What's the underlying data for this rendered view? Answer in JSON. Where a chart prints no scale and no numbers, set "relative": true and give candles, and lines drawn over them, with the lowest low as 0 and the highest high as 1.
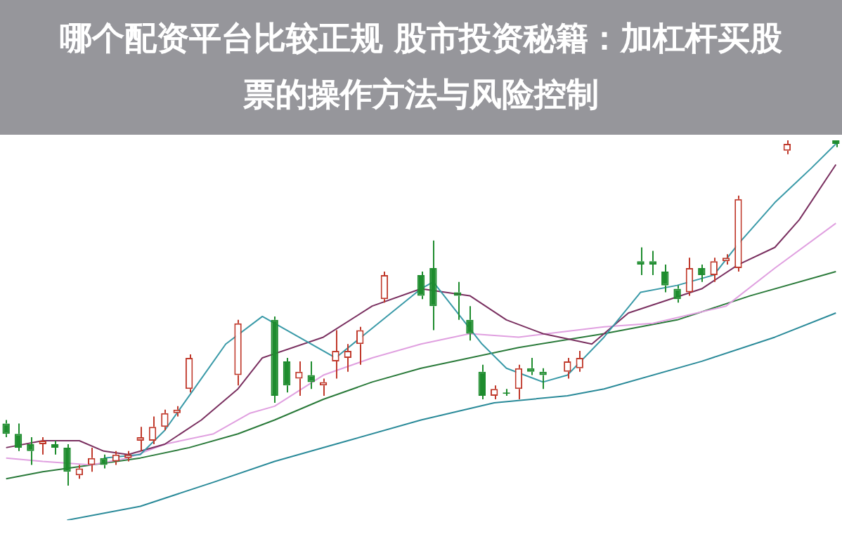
{
  "chart_data": {
    "type": "candlestick",
    "title": "哪个配资平台比较正规 股市投资秘籍：加杠杆买股票的操作方法与风险控制",
    "relative": true,
    "legend": false,
    "categories": [
      null,
      null,
      null,
      null,
      null,
      null,
      null,
      null,
      null,
      null,
      null,
      null,
      null,
      null,
      null,
      null,
      null,
      null,
      null,
      null,
      null,
      null,
      null,
      null,
      null,
      null,
      null,
      null,
      null,
      null,
      null,
      null,
      null,
      null,
      null,
      null,
      null,
      null,
      null,
      null,
      null,
      null,
      null,
      null,
      null,
      null,
      null,
      null,
      null,
      null,
      null,
      null,
      null,
      null,
      null,
      null,
      null,
      null,
      null,
      null,
      null,
      null,
      null,
      null,
      null,
      null,
      null,
      null,
      null
    ],
    "ohlc": [
      [
        0.18,
        0.19,
        0.14,
        0.15
      ],
      [
        0.15,
        0.18,
        0.1,
        0.11
      ],
      [
        0.12,
        0.14,
        0.06,
        0.1
      ],
      [
        0.12,
        0.14,
        0.09,
        0.13
      ],
      [
        0.12,
        0.13,
        0.09,
        0.11
      ],
      [
        0.11,
        0.12,
        0,
        0.04
      ],
      [
        0.03,
        0.06,
        0.02,
        0.05
      ],
      [
        0.06,
        0.11,
        0.04,
        0.08
      ],
      [
        0.08,
        0.09,
        0.05,
        0.06
      ],
      [
        0.07,
        0.1,
        0.06,
        0.09
      ],
      [
        0.08,
        0.1,
        0.07,
        0.09
      ],
      [
        0.13,
        0.17,
        0.1,
        0.14
      ],
      [
        0.13,
        0.2,
        0.12,
        0.17
      ],
      [
        0.17,
        0.22,
        0.16,
        0.21
      ],
      [
        0.21,
        0.23,
        0.2,
        0.22
      ],
      [
        0.28,
        0.38,
        0.27,
        0.37
      ],
      null,
      null,
      null,
      [
        0.32,
        0.48,
        0.29,
        0.47
      ],
      null,
      null,
      [
        0.48,
        0.49,
        0.24,
        0.26
      ],
      [
        0.36,
        0.37,
        0.27,
        0.29
      ],
      [
        0.31,
        0.36,
        0.26,
        0.33
      ],
      [
        0.32,
        0.36,
        0.28,
        0.3
      ],
      [
        0.29,
        0.31,
        0.26,
        0.3
      ],
      [
        0.36,
        0.45,
        0.31,
        0.39
      ],
      [
        0.37,
        0.41,
        0.33,
        0.39
      ],
      [
        0.41,
        0.46,
        0.35,
        0.45
      ],
      null,
      [
        0.54,
        0.62,
        0.53,
        0.61
      ],
      null,
      null,
      [
        0.61,
        0.62,
        0.54,
        0.55
      ],
      [
        0.63,
        0.71,
        0.45,
        0.52
      ],
      null,
      [
        0.56,
        0.59,
        0.48,
        0.55
      ],
      [
        0.48,
        0.52,
        0.42,
        0.44
      ],
      [
        0.33,
        0.35,
        0.25,
        0.26
      ],
      [
        0.26,
        0.29,
        0.25,
        0.28
      ],
      [
        0.27,
        0.28,
        0.26,
        0.27
      ],
      [
        0.28,
        0.35,
        0.25,
        0.34
      ],
      [
        0.34,
        0.37,
        0.32,
        0.33
      ],
      [
        0.33,
        0.34,
        0.28,
        0.32
      ],
      null,
      [
        0.33,
        0.37,
        0.31,
        0.36
      ],
      [
        0.34,
        0.39,
        0.33,
        0.37
      ],
      null,
      null,
      null,
      null,
      [
        0.65,
        0.69,
        0.61,
        0.64
      ],
      [
        0.65,
        0.68,
        0.61,
        0.64
      ],
      [
        0.62,
        0.64,
        0.56,
        0.58
      ],
      [
        0.57,
        0.58,
        0.53,
        0.54
      ],
      [
        0.56,
        0.66,
        0.55,
        0.63
      ],
      [
        0.63,
        0.64,
        0.59,
        0.61
      ],
      [
        0.61,
        0.66,
        0.59,
        0.65
      ],
      [
        0.65,
        0.67,
        0.64,
        0.66
      ],
      [
        0.63,
        0.84,
        0.62,
        0.83
      ],
      null,
      null,
      null,
      [
        0.97,
        1,
        0.96,
        0.99
      ],
      null,
      null,
      null,
      [
        1,
        1,
        0.98,
        0.99
      ]
    ],
    "colors": [
      "#1e8c2e",
      "#1e8c2e",
      "#1e8c2e",
      "#c0392b",
      "#1e8c2e",
      "#1e8c2e",
      "#c0392b",
      "#c0392b",
      "#1e8c2e",
      "#c0392b",
      "#c0392b",
      "#c0392b",
      "#c0392b",
      "#c0392b",
      "#c0392b",
      "#c0392b",
      null,
      null,
      null,
      "#c0392b",
      null,
      null,
      "#1e8c2e",
      "#1e8c2e",
      "#c0392b",
      "#1e8c2e",
      "#c0392b",
      "#c0392b",
      "#c0392b",
      "#c0392b",
      null,
      "#c0392b",
      null,
      null,
      "#1e8c2e",
      "#1e8c2e",
      null,
      "#1e8c2e",
      "#1e8c2e",
      "#1e8c2e",
      "#c0392b",
      "#1e8c2e",
      "#c0392b",
      "#1e8c2e",
      "#1e8c2e",
      null,
      "#c0392b",
      "#c0392b",
      null,
      null,
      null,
      null,
      "#1e8c2e",
      "#1e8c2e",
      "#1e8c2e",
      "#1e8c2e",
      "#c0392b",
      "#1e8c2e",
      "#c0392b",
      "#c0392b",
      "#c0392b",
      null,
      null,
      null,
      "#c0392b",
      null,
      null,
      null,
      "#1e8c2e"
    ],
    "series": [
      {
        "type": "line",
        "color": "#3a9aa8",
        "values": [
          null,
          null,
          null,
          null,
          null,
          null,
          null,
          null,
          0.08,
          null,
          null,
          0.09,
          null,
          0.16,
          null,
          0.26,
          null,
          null,
          0.41,
          null,
          null,
          0.49,
          null,
          null,
          null,
          null,
          null,
          0.37,
          null,
          null,
          null,
          null,
          null,
          null,
          0.57,
          0.59,
          null,
          null,
          null,
          0.41,
          null,
          0.34,
          null,
          null,
          0.3,
          null,
          0.32,
          null,
          null,
          0.43,
          null,
          null,
          0.56,
          null,
          null,
          0.58,
          null,
          null,
          0.61,
          null,
          0.7,
          null,
          null,
          0.82,
          null,
          null,
          0.92,
          null,
          0.99
        ]
      },
      {
        "type": "line",
        "color": "#7a3060",
        "values": [
          0.11,
          null,
          null,
          0.13,
          null,
          null,
          0.13,
          null,
          0.1,
          null,
          0.09,
          null,
          null,
          0.12,
          null,
          null,
          0.19,
          null,
          null,
          0.28,
          null,
          0.37,
          null,
          null,
          null,
          null,
          0.43,
          null,
          null,
          null,
          0.52,
          null,
          null,
          null,
          0.57,
          null,
          null,
          null,
          0.55,
          null,
          null,
          0.48,
          null,
          null,
          0.44,
          null,
          null,
          null,
          0.41,
          null,
          null,
          0.5,
          null,
          null,
          null,
          null,
          null,
          0.57,
          null,
          null,
          0.64,
          null,
          null,
          0.69,
          null,
          0.77,
          null,
          null,
          0.93
        ]
      },
      {
        "type": "line",
        "color": "#e0a0e0",
        "values": [
          0.08,
          null,
          null,
          0.07,
          null,
          null,
          null,
          0.06,
          null,
          null,
          0.08,
          null,
          null,
          0.12,
          null,
          null,
          null,
          0.15,
          null,
          null,
          0.21,
          null,
          0.23,
          null,
          null,
          null,
          0.32,
          null,
          null,
          null,
          0.37,
          null,
          null,
          null,
          0.41,
          null,
          null,
          null,
          0.44,
          null,
          null,
          null,
          0.43,
          null,
          null,
          null,
          null,
          null,
          null,
          0.46,
          null,
          null,
          null,
          0.47,
          null,
          null,
          null,
          null,
          null,
          0.52,
          null,
          null,
          null,
          0.63,
          null,
          null,
          null,
          null,
          0.76
        ]
      },
      {
        "type": "line",
        "color": "#2a7a3a",
        "values": [
          0.02,
          null,
          null,
          0.04,
          null,
          null,
          null,
          0.06,
          null,
          null,
          null,
          0.08,
          null,
          null,
          null,
          0.11,
          null,
          null,
          null,
          0.15,
          null,
          null,
          0.19,
          null,
          null,
          null,
          0.25,
          null,
          null,
          null,
          0.3,
          null,
          null,
          null,
          0.34,
          null,
          null,
          null,
          0.37,
          null,
          null,
          null,
          0.4,
          null,
          null,
          null,
          null,
          null,
          null,
          0.44,
          null,
          null,
          null,
          null,
          null,
          0.48,
          null,
          null,
          null,
          null,
          null,
          0.55,
          null,
          null,
          null,
          null,
          null,
          null,
          0.62
        ]
      },
      {
        "type": "line",
        "color": "#2a8a99",
        "values": [
          null,
          null,
          null,
          null,
          null,
          -0.1,
          null,
          null,
          null,
          null,
          null,
          -0.06,
          null,
          null,
          null,
          null,
          null,
          0.01,
          null,
          null,
          null,
          null,
          0.07,
          null,
          null,
          null,
          null,
          null,
          0.13,
          null,
          null,
          null,
          null,
          null,
          0.19,
          null,
          null,
          null,
          null,
          null,
          0.24,
          null,
          null,
          null,
          null,
          null,
          0.26,
          null,
          null,
          0.28,
          null,
          null,
          null,
          null,
          null,
          null,
          null,
          0.36,
          null,
          null,
          null,
          null,
          null,
          0.43,
          null,
          null,
          null,
          null,
          0.5
        ]
      }
    ]
  }
}
